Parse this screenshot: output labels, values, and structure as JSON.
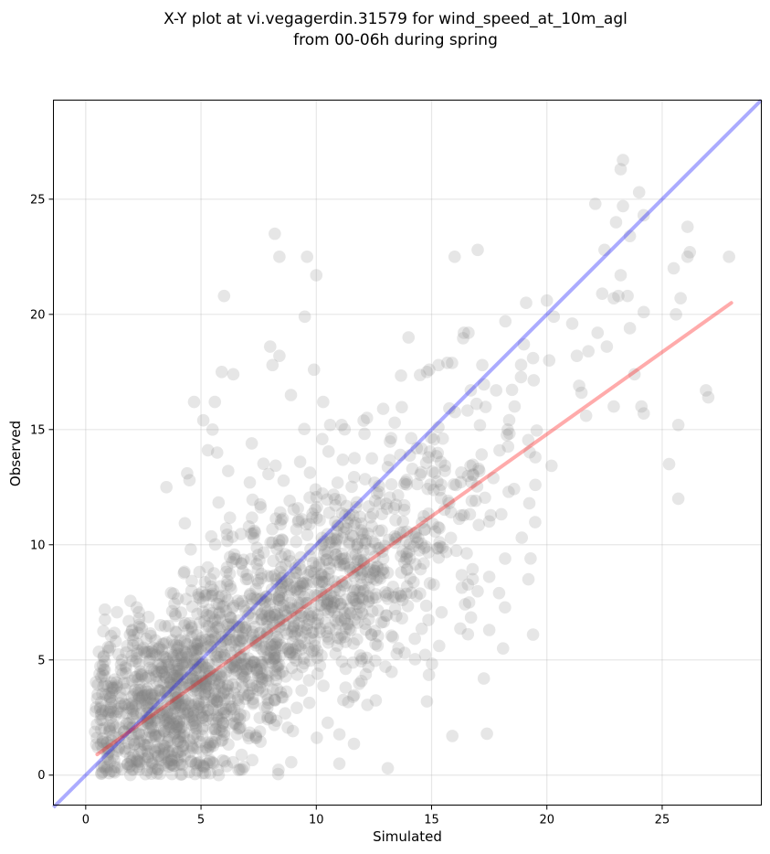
{
  "chart_data": {
    "type": "scatter",
    "title_line1": "X-Y plot at vi.vegagerdin.31579 for wind_speed_at_10m_agl",
    "title_line2": "from 00-06h during spring",
    "xlabel": "Simulated",
    "ylabel": "Observed",
    "xlim": [
      -1.4,
      29.3
    ],
    "ylim": [
      -1.3,
      29.3
    ],
    "xticks": [
      0,
      5,
      10,
      15,
      20,
      25
    ],
    "yticks": [
      0,
      5,
      10,
      15,
      20,
      25
    ],
    "grid": true,
    "point_color": "#808080",
    "identity_line_color": "#0000ff",
    "fit_line_color": "#ff0000",
    "identity_line": {
      "x": [
        -1.4,
        29.3
      ],
      "y": [
        -1.4,
        29.3
      ]
    },
    "fit_line": {
      "x": [
        0.5,
        28.0
      ],
      "y": [
        0.9,
        20.5
      ]
    },
    "outlier_points": [
      {
        "x": 8.2,
        "y": 23.5
      },
      {
        "x": 9.6,
        "y": 22.5
      },
      {
        "x": 8.4,
        "y": 22.5
      },
      {
        "x": 10.0,
        "y": 21.7
      },
      {
        "x": 9.5,
        "y": 19.9
      },
      {
        "x": 6.0,
        "y": 20.8
      },
      {
        "x": 16.0,
        "y": 22.5
      },
      {
        "x": 17.0,
        "y": 22.8
      },
      {
        "x": 23.3,
        "y": 26.7
      },
      {
        "x": 23.2,
        "y": 26.3
      },
      {
        "x": 24.0,
        "y": 25.3
      },
      {
        "x": 23.3,
        "y": 24.7
      },
      {
        "x": 22.1,
        "y": 24.8
      },
      {
        "x": 24.2,
        "y": 24.3
      },
      {
        "x": 23.0,
        "y": 24.0
      },
      {
        "x": 26.1,
        "y": 23.8
      },
      {
        "x": 23.6,
        "y": 23.4
      },
      {
        "x": 22.5,
        "y": 22.8
      },
      {
        "x": 26.2,
        "y": 22.7
      },
      {
        "x": 26.1,
        "y": 22.5
      },
      {
        "x": 27.9,
        "y": 22.5
      },
      {
        "x": 25.5,
        "y": 22.0
      },
      {
        "x": 23.2,
        "y": 21.7
      },
      {
        "x": 25.8,
        "y": 20.7
      },
      {
        "x": 23.1,
        "y": 20.8
      },
      {
        "x": 22.4,
        "y": 20.9
      },
      {
        "x": 22.9,
        "y": 20.7
      },
      {
        "x": 20.0,
        "y": 20.6
      },
      {
        "x": 19.1,
        "y": 20.5
      },
      {
        "x": 23.5,
        "y": 20.8
      },
      {
        "x": 25.6,
        "y": 20.0
      },
      {
        "x": 24.2,
        "y": 20.1
      },
      {
        "x": 20.3,
        "y": 19.9
      },
      {
        "x": 18.2,
        "y": 19.7
      },
      {
        "x": 21.1,
        "y": 19.6
      },
      {
        "x": 22.2,
        "y": 19.2
      },
      {
        "x": 23.6,
        "y": 19.4
      },
      {
        "x": 16.6,
        "y": 19.2
      },
      {
        "x": 14.0,
        "y": 19.0
      },
      {
        "x": 17.2,
        "y": 17.8
      },
      {
        "x": 15.3,
        "y": 17.8
      },
      {
        "x": 14.8,
        "y": 17.5
      },
      {
        "x": 19.0,
        "y": 18.7
      },
      {
        "x": 19.4,
        "y": 18.1
      },
      {
        "x": 20.1,
        "y": 18.0
      },
      {
        "x": 21.3,
        "y": 18.2
      },
      {
        "x": 21.8,
        "y": 18.4
      },
      {
        "x": 22.6,
        "y": 18.6
      },
      {
        "x": 23.8,
        "y": 17.4
      },
      {
        "x": 21.5,
        "y": 16.6
      },
      {
        "x": 21.4,
        "y": 16.9
      },
      {
        "x": 21.7,
        "y": 15.6
      },
      {
        "x": 22.9,
        "y": 16.0
      },
      {
        "x": 24.2,
        "y": 15.7
      },
      {
        "x": 24.1,
        "y": 16.0
      },
      {
        "x": 25.7,
        "y": 15.2
      },
      {
        "x": 26.9,
        "y": 16.7
      },
      {
        "x": 27.0,
        "y": 16.4
      },
      {
        "x": 25.3,
        "y": 13.5
      },
      {
        "x": 25.7,
        "y": 12.0
      },
      {
        "x": 19.5,
        "y": 12.6
      },
      {
        "x": 19.2,
        "y": 8.5
      },
      {
        "x": 19.4,
        "y": 6.1
      },
      {
        "x": 18.1,
        "y": 5.5
      },
      {
        "x": 17.5,
        "y": 6.3
      },
      {
        "x": 17.4,
        "y": 1.8
      },
      {
        "x": 15.9,
        "y": 1.7
      },
      {
        "x": 14.8,
        "y": 3.2
      },
      {
        "x": 13.1,
        "y": 0.3
      },
      {
        "x": 11.0,
        "y": 0.5
      },
      {
        "x": 8.0,
        "y": 18.6
      },
      {
        "x": 8.4,
        "y": 18.2
      },
      {
        "x": 8.1,
        "y": 17.8
      },
      {
        "x": 5.9,
        "y": 17.5
      },
      {
        "x": 6.4,
        "y": 17.4
      },
      {
        "x": 9.9,
        "y": 17.6
      },
      {
        "x": 4.7,
        "y": 16.2
      },
      {
        "x": 5.6,
        "y": 16.2
      },
      {
        "x": 8.9,
        "y": 16.5
      },
      {
        "x": 10.3,
        "y": 16.2
      },
      {
        "x": 3.5,
        "y": 12.5
      },
      {
        "x": 4.4,
        "y": 13.1
      },
      {
        "x": 4.5,
        "y": 12.8
      },
      {
        "x": 5.3,
        "y": 14.1
      },
      {
        "x": 5.7,
        "y": 14.0
      },
      {
        "x": 5.5,
        "y": 15.0
      },
      {
        "x": 5.1,
        "y": 15.4
      },
      {
        "x": 7.2,
        "y": 14.4
      },
      {
        "x": 9.3,
        "y": 13.6
      },
      {
        "x": 10.6,
        "y": 15.2
      },
      {
        "x": 11.1,
        "y": 15.2
      },
      {
        "x": 12.9,
        "y": 15.9
      },
      {
        "x": 13.4,
        "y": 15.3
      },
      {
        "x": 14.9,
        "y": 17.6
      },
      {
        "x": 16.4,
        "y": 19.2
      },
      {
        "x": 17.8,
        "y": 16.7
      },
      {
        "x": 16.7,
        "y": 16.7
      },
      {
        "x": 18.6,
        "y": 16.0
      },
      {
        "x": 18.3,
        "y": 15.0
      },
      {
        "x": 19.5,
        "y": 13.8
      }
    ],
    "cluster_density": [
      {
        "cx": 2.5,
        "cy": 2.5,
        "sx": 1.6,
        "sy": 1.8,
        "n": 420
      },
      {
        "cx": 4.5,
        "cy": 3.6,
        "sx": 1.5,
        "sy": 1.8,
        "n": 380
      },
      {
        "cx": 6.5,
        "cy": 5.5,
        "sx": 1.8,
        "sy": 2.0,
        "n": 330
      },
      {
        "cx": 9.0,
        "cy": 7.2,
        "sx": 1.9,
        "sy": 2.1,
        "n": 320
      },
      {
        "cx": 11.5,
        "cy": 8.8,
        "sx": 1.8,
        "sy": 2.2,
        "n": 240
      },
      {
        "cx": 14.0,
        "cy": 10.5,
        "sx": 1.8,
        "sy": 2.6,
        "n": 150
      },
      {
        "cx": 16.5,
        "cy": 12.5,
        "sx": 1.8,
        "sy": 2.6,
        "n": 80
      }
    ]
  }
}
